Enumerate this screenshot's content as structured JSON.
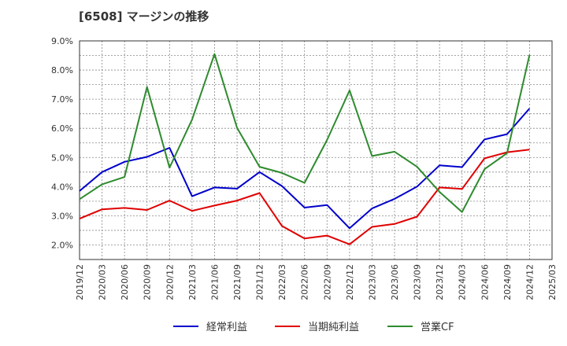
{
  "title": "[6508]  マージンの推移",
  "chart_data": {
    "type": "line",
    "x": [
      "2019/12",
      "2020/03",
      "2020/06",
      "2020/09",
      "2020/12",
      "2021/03",
      "2021/06",
      "2021/09",
      "2021/12",
      "2022/03",
      "2022/06",
      "2022/09",
      "2022/12",
      "2023/03",
      "2023/06",
      "2023/09",
      "2023/12",
      "2024/03",
      "2024/06",
      "2024/09",
      "2024/12",
      "2025/03"
    ],
    "y_ticks": [
      "2.0%",
      "3.0%",
      "4.0%",
      "5.0%",
      "6.0%",
      "7.0%",
      "8.0%",
      "9.0%"
    ],
    "ylim": [
      1.5,
      9.0
    ],
    "grid": true,
    "legend_position": "bottom",
    "series": [
      {
        "name": "経常利益",
        "color": "#0000cc",
        "values": [
          3.85,
          4.5,
          4.85,
          5.02,
          5.33,
          3.67,
          3.97,
          3.93,
          4.5,
          4.02,
          3.28,
          3.37,
          2.57,
          3.25,
          3.58,
          4.0,
          4.73,
          4.67,
          5.62,
          5.8,
          6.68,
          null
        ]
      },
      {
        "name": "当期純利益",
        "color": "#e00000",
        "values": [
          2.9,
          3.22,
          3.27,
          3.2,
          3.52,
          3.17,
          3.35,
          3.52,
          3.78,
          2.65,
          2.22,
          2.32,
          2.02,
          2.62,
          2.72,
          2.97,
          3.97,
          3.92,
          4.97,
          5.18,
          5.27,
          null
        ]
      },
      {
        "name": "営業CF",
        "color": "#2e8b2e",
        "values": [
          3.57,
          4.08,
          4.33,
          7.42,
          4.65,
          6.3,
          8.55,
          6.02,
          4.68,
          4.47,
          4.13,
          5.6,
          7.3,
          5.05,
          5.2,
          4.68,
          3.82,
          3.13,
          4.6,
          5.15,
          8.52,
          null
        ]
      }
    ]
  }
}
